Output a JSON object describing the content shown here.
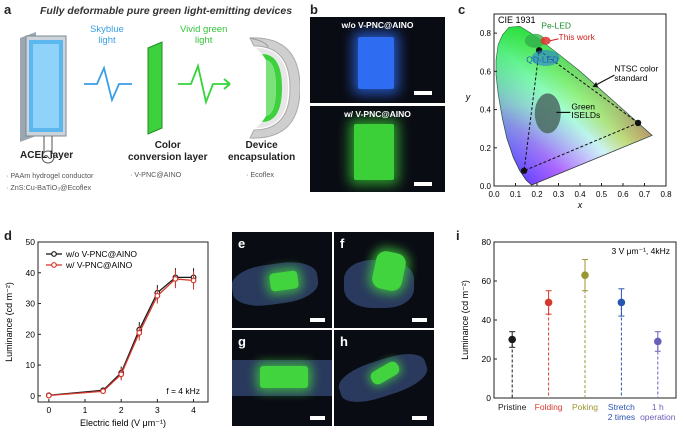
{
  "panel_labels": {
    "a": "a",
    "b": "b",
    "c": "c",
    "d": "d",
    "e": "e",
    "f": "f",
    "g": "g",
    "h": "h",
    "i": "i"
  },
  "panel_a": {
    "title": "Fully deformable pure green light-emitting devices",
    "skyblue_light": [
      "Skyblue",
      "light"
    ],
    "vivid_green_light": [
      "Vivid green",
      "light"
    ],
    "acel_layer": "ACEL layer",
    "color_conversion_layer": [
      "Color",
      "conversion layer"
    ],
    "device_encapsulation": [
      "Device",
      "encapsulation"
    ],
    "acel_materials": [
      "· PAAm hydrogel conductor",
      "· ZnS:Cu-BaTiO₃@Ecoflex"
    ],
    "ccl_materials": [
      "· V-PNC@AINO"
    ],
    "encap_materials": [
      "· Ecoflex"
    ]
  },
  "panel_b": {
    "top_label": "w/o V-PNC@AINO",
    "bottom_label": "w/ V-PNC@AINO"
  },
  "colors": {
    "black_series": "#1a1a1a",
    "red_series": "#d63a2f",
    "skyblue": "#3a9fe6",
    "green": "#35d43a"
  },
  "chart_data": [
    {
      "type": "chromaticity",
      "title": "CIE 1931",
      "xlabel": "x",
      "ylabel": "y",
      "xlim": [
        0.0,
        0.8
      ],
      "ylim": [
        0.0,
        0.9
      ],
      "xticks": [
        "0.0",
        "0.1",
        "0.2",
        "0.3",
        "0.4",
        "0.5",
        "0.6",
        "0.7",
        "0.8"
      ],
      "yticks": [
        "0.0",
        "0.2",
        "0.4",
        "0.6",
        "0.8"
      ],
      "ntsc_triangle": [
        [
          0.67,
          0.33
        ],
        [
          0.21,
          0.71
        ],
        [
          0.14,
          0.08
        ]
      ],
      "annotations": {
        "pe_led": "Pe-LED",
        "this_work": "This work",
        "qd_led": "QD-LED",
        "ntsc": [
          "NTSC color",
          "standard"
        ],
        "green_iseld": [
          "Green",
          "ISELDs"
        ]
      },
      "regions": {
        "pe_led": {
          "cx": 0.19,
          "cy": 0.76
        },
        "this_work": {
          "cx": 0.24,
          "cy": 0.76
        },
        "qd_led": {
          "cx": 0.24,
          "cy": 0.67
        },
        "green_iseld": {
          "cx": 0.25,
          "cy": 0.38
        }
      }
    },
    {
      "type": "line",
      "xlabel": "Electric field (V μm⁻¹)",
      "ylabel": "Luminance (cd m⁻²)",
      "xlim": [
        -0.3,
        4.4
      ],
      "ylim": [
        -2,
        50
      ],
      "xticks": [
        0,
        1,
        2,
        3,
        4
      ],
      "yticks": [
        0,
        10,
        20,
        30,
        40,
        50
      ],
      "annotation": "f = 4 kHz",
      "series": [
        {
          "name": "w/o V-PNC@AINO",
          "x": [
            0,
            1.5,
            2,
            2.5,
            3,
            3.5,
            4
          ],
          "y": [
            0.2,
            1.8,
            7.5,
            21.5,
            33.5,
            38.5,
            38.5
          ],
          "err": [
            0.3,
            0.5,
            2.0,
            2.5,
            2.5,
            3.0,
            3.0
          ]
        },
        {
          "name": "w/ V-PNC@AINO",
          "x": [
            0,
            1.5,
            2,
            2.5,
            3,
            3.5,
            4
          ],
          "y": [
            0.1,
            1.5,
            7.0,
            20.5,
            32.5,
            38.0,
            37.5
          ],
          "err": [
            0.3,
            0.5,
            2.0,
            2.5,
            2.5,
            3.0,
            3.0
          ]
        }
      ]
    },
    {
      "type": "scatter",
      "ylabel": "Luminance (cd m⁻²)",
      "ylim": [
        0,
        80
      ],
      "yticks": [
        0,
        20,
        40,
        60,
        80
      ],
      "annotation": "3 V μm⁻¹, 4kHz",
      "categories": [
        {
          "label": [
            "Pristine"
          ],
          "value": 30,
          "err": 4,
          "color": "#1a1a1a"
        },
        {
          "label": [
            "Folding"
          ],
          "value": 49,
          "err": 6,
          "color": "#d63a2f"
        },
        {
          "label": [
            "Poking"
          ],
          "value": 63,
          "err": 8,
          "color": "#9a9630"
        },
        {
          "label": [
            "Stretch",
            "2 times"
          ],
          "value": 49,
          "err": 7,
          "color": "#2855b0"
        },
        {
          "label": [
            "1 h",
            "operation"
          ],
          "value": 29,
          "err": 5,
          "color": "#6a5fb8"
        }
      ]
    }
  ]
}
